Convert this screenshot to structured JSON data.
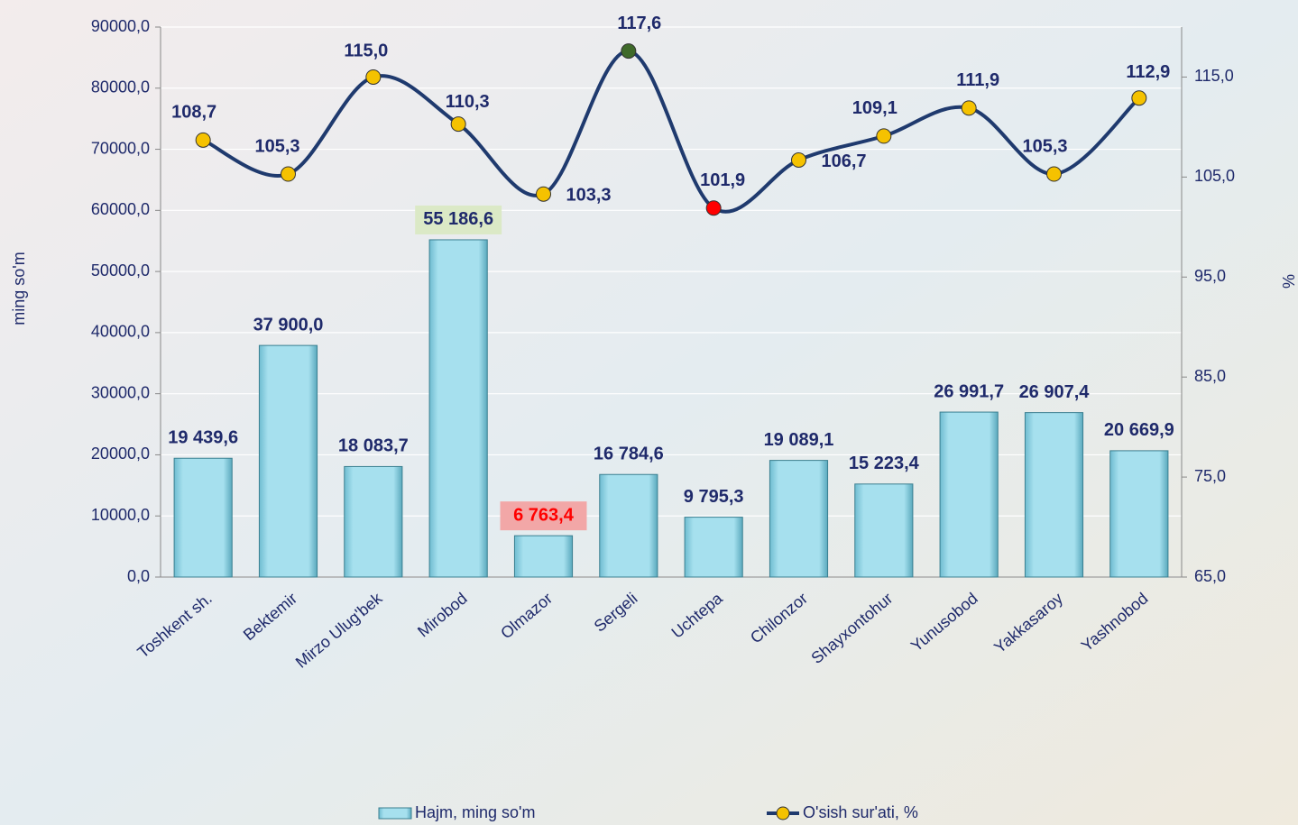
{
  "chart_data": {
    "type": "bar-line",
    "categories": [
      "Toshkent sh.",
      "Bektemir",
      "Mirzo Ulug'bek",
      "Mirobod",
      "Olmazor",
      "Sergeli",
      "Uchtepa",
      "Chilonzor",
      "Shayxontohur",
      "Yunusobod",
      "Yakkasaroy",
      "Yashnobod"
    ],
    "series": [
      {
        "name": "Hajm, ming so'm",
        "type": "bar",
        "color": "#8fd3e3",
        "values": [
          19439.6,
          37900.0,
          18083.7,
          55186.6,
          6763.4,
          16784.6,
          9795.3,
          19089.1,
          15223.4,
          26991.7,
          26907.4,
          20669.9
        ],
        "value_labels": [
          "19 439,6",
          "37 900,0",
          "18 083,7",
          "55 186,6",
          "6 763,4",
          "16 784,6",
          "9 795,3",
          "19 089,1",
          "15 223,4",
          "26 991,7",
          "26 907,4",
          "20 669,9"
        ],
        "label_colors": [
          "#1f2a6b",
          "#1f2a6b",
          "#1f2a6b",
          "#1f2a6b",
          "#ff0000",
          "#1f2a6b",
          "#1f2a6b",
          "#1f2a6b",
          "#1f2a6b",
          "#1f2a6b",
          "#1f2a6b",
          "#1f2a6b"
        ],
        "label_backgrounds": [
          null,
          null,
          null,
          "#dbe9c6",
          "#f2a7a7",
          null,
          null,
          null,
          null,
          null,
          null,
          null
        ]
      },
      {
        "name": "O'sish sur'ati, %",
        "type": "line",
        "axis": "y2",
        "color": "#1f3a6e",
        "values": [
          108.7,
          105.3,
          115.0,
          110.3,
          103.3,
          117.6,
          101.9,
          106.7,
          109.1,
          111.9,
          105.3,
          112.9
        ],
        "value_labels": [
          "108,7",
          "105,3",
          "115,0",
          "110,3",
          "103,3",
          "117,6",
          "101,9",
          "106,7",
          "109,1",
          "111,9",
          "105,3",
          "112,9"
        ],
        "point_colors": [
          "#f5c200",
          "#f5c200",
          "#f5c200",
          "#f5c200",
          "#f5c200",
          "#3f6a2a",
          "#ff0000",
          "#f5c200",
          "#f5c200",
          "#f5c200",
          "#f5c200",
          "#f5c200"
        ]
      }
    ],
    "y_label": "ming so'm",
    "y2_label": "%",
    "ylim": [
      0,
      90000
    ],
    "yticks": [
      {
        "value": 0,
        "label": "0,0"
      },
      {
        "value": 10000,
        "label": "10000,0"
      },
      {
        "value": 20000,
        "label": "20000,0"
      },
      {
        "value": 30000,
        "label": "30000,0"
      },
      {
        "value": 40000,
        "label": "40000,0"
      },
      {
        "value": 50000,
        "label": "50000,0"
      },
      {
        "value": 60000,
        "label": "60000,0"
      },
      {
        "value": 70000,
        "label": "70000,0"
      },
      {
        "value": 80000,
        "label": "80000,0"
      },
      {
        "value": 90000,
        "label": "90000,0"
      }
    ],
    "y2lim": [
      65,
      120
    ],
    "y2ticks": [
      {
        "value": 65,
        "label": "65,0"
      },
      {
        "value": 75,
        "label": "75,0"
      },
      {
        "value": 85,
        "label": "85,0"
      },
      {
        "value": 95,
        "label": "95,0"
      },
      {
        "value": 105,
        "label": "105,0"
      },
      {
        "value": 115,
        "label": "115,0"
      }
    ],
    "grid": true,
    "legend": "bottom"
  }
}
